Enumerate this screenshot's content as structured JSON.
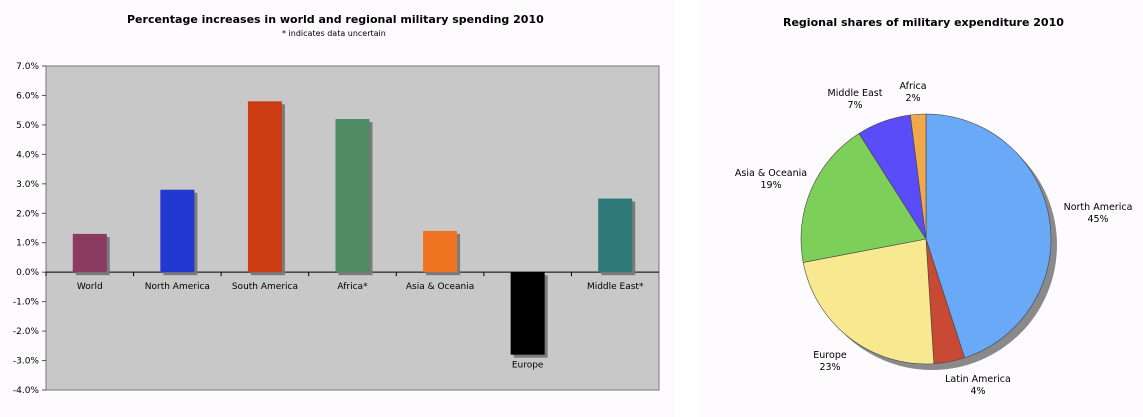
{
  "chart_data": [
    {
      "type": "bar",
      "title": "Percentage increases in world and regional military spending 2010",
      "subtitle": "* indicates data uncertain",
      "categories": [
        "World",
        "North America",
        "South America",
        "Africa*",
        "Asia & Oceania",
        "Europe",
        "Middle East*"
      ],
      "values": [
        1.3,
        2.8,
        5.8,
        5.2,
        1.4,
        -2.8,
        2.5
      ],
      "colors": [
        "#8b3a62",
        "#2238d0",
        "#cc3c12",
        "#4e8b62",
        "#ee7422",
        "#000000",
        "#2e7878"
      ],
      "ylim": [
        -4.0,
        7.0
      ],
      "yticks": [
        "7.0%",
        "6.0%",
        "5.0%",
        "4.0%",
        "3.0%",
        "2.0%",
        "1.0%",
        "0.0%",
        "-1.0%",
        "-2.0%",
        "-3.0%",
        "-4.0%"
      ],
      "grid": false,
      "plot_background": "#c8c8c8"
    },
    {
      "type": "pie",
      "title": "Regional shares of military expenditure 2010",
      "slices": [
        {
          "label": "North America",
          "pct_label": "45%",
          "value": 45,
          "color": "#6aa8f8"
        },
        {
          "label": "Latin America",
          "pct_label": "4%",
          "value": 4,
          "color": "#c84a34"
        },
        {
          "label": "Europe",
          "pct_label": "23%",
          "value": 23,
          "color": "#f8e890"
        },
        {
          "label": "Asia & Oceania",
          "pct_label": "19%",
          "value": 19,
          "color": "#7cd05a"
        },
        {
          "label": "Middle East",
          "pct_label": "7%",
          "value": 7,
          "color": "#5a4cf8"
        },
        {
          "label": "Africa",
          "pct_label": "2%",
          "value": 2,
          "color": "#f0a84c"
        }
      ]
    }
  ]
}
